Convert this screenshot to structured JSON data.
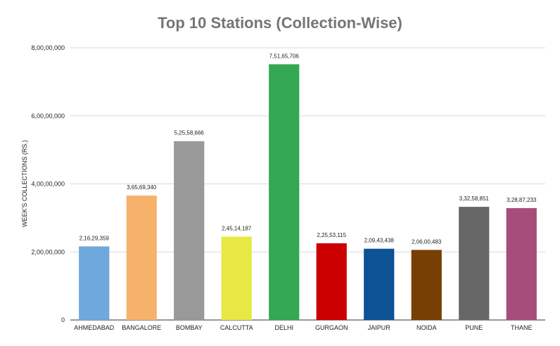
{
  "chart_data": {
    "type": "bar",
    "title": "Top 10 Stations (Collection-Wise)",
    "xlabel": "",
    "ylabel": "WEEK'S COLLECTIONS (RS.)",
    "ylim": [
      0,
      80000000
    ],
    "yticks": [
      {
        "value": 0,
        "label": "0"
      },
      {
        "value": 20000000,
        "label": "2,00,00,000"
      },
      {
        "value": 40000000,
        "label": "4,00,00,000"
      },
      {
        "value": 60000000,
        "label": "6,00,00,000"
      },
      {
        "value": 80000000,
        "label": "8,00,00,000"
      }
    ],
    "grid": true,
    "categories": [
      "AHMEDABAD",
      "BANGALORE",
      "BOMBAY",
      "CALCUTTA",
      "DELHI",
      "GURGAON",
      "JAIPUR",
      "NOIDA",
      "PUNE",
      "THANE"
    ],
    "values": [
      21629359,
      36569340,
      52558666,
      24514187,
      75165706,
      22553115,
      20943438,
      20600483,
      33258851,
      32887233
    ],
    "value_labels": [
      "2,16,29,359",
      "3,65,69,340",
      "5,25,58,666",
      "2,45,14,187",
      "7,51,65,706",
      "2,25,53,115",
      "2,09,43,438",
      "2,06,00,483",
      "3,32,58,851",
      "3,28,87,233"
    ],
    "colors": [
      "#6fa8dc",
      "#f6b26b",
      "#999999",
      "#e8e845",
      "#34a853",
      "#cc0000",
      "#0b5394",
      "#783f04",
      "#666666",
      "#a64d79"
    ]
  }
}
